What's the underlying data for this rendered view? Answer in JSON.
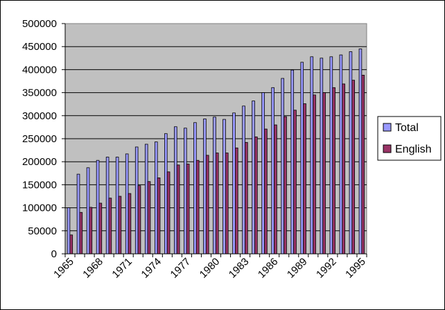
{
  "chart_data": {
    "type": "bar",
    "x": [
      1965,
      1966,
      1967,
      1968,
      1969,
      1970,
      1971,
      1972,
      1973,
      1974,
      1975,
      1976,
      1977,
      1978,
      1979,
      1980,
      1981,
      1982,
      1983,
      1984,
      1985,
      1986,
      1987,
      1988,
      1989,
      1990,
      1991,
      1992,
      1993,
      1994,
      1995
    ],
    "x_tick_labels": [
      "1965",
      "1968",
      "1971",
      "1974",
      "1977",
      "1980",
      "1983",
      "1986",
      "1989",
      "1992",
      "1995"
    ],
    "series": [
      {
        "name": "Total",
        "color": "#9999ff",
        "values": [
          100000,
          173000,
          187000,
          203000,
          210000,
          210000,
          217000,
          232000,
          238000,
          243000,
          261000,
          276000,
          273000,
          285000,
          293000,
          297000,
          292000,
          306000,
          321000,
          332000,
          350000,
          361000,
          381000,
          399000,
          416000,
          428000,
          425000,
          428000,
          432000,
          439000,
          445000
        ]
      },
      {
        "name": "English",
        "color": "#993366",
        "values": [
          41000,
          90000,
          101000,
          110000,
          121000,
          125000,
          131000,
          148000,
          157000,
          165000,
          178000,
          193000,
          195000,
          203000,
          214000,
          219000,
          219000,
          230000,
          242000,
          254000,
          271000,
          280000,
          298000,
          312000,
          326000,
          345000,
          350000,
          361000,
          369000,
          377000,
          388000
        ]
      }
    ],
    "y_tick_labels": [
      "0",
      "50000",
      "100000",
      "150000",
      "200000",
      "250000",
      "300000",
      "350000",
      "400000",
      "450000",
      "500000"
    ],
    "ylim": [
      0,
      500000
    ],
    "title": "",
    "xlabel": "",
    "ylabel": "",
    "grid": true,
    "plot_background": "#c0c0c0",
    "legend_position": "right"
  }
}
